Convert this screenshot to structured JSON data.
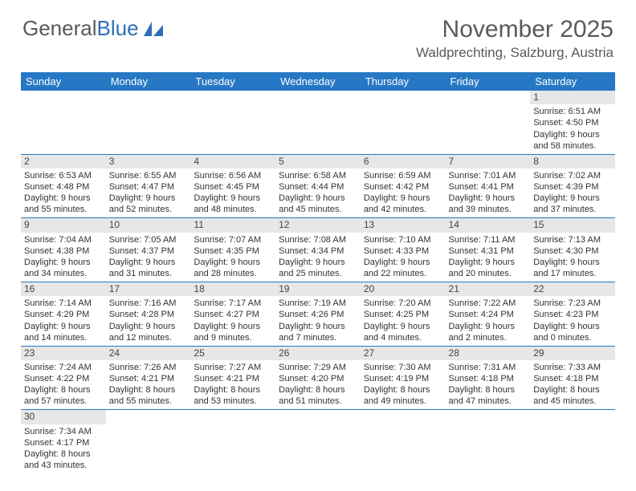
{
  "logo": {
    "text1": "General",
    "text2": "Blue"
  },
  "title": {
    "month": "November 2025",
    "location": "Waldprechting, Salzburg, Austria"
  },
  "colors": {
    "header_bg": "#2778c4",
    "header_text": "#ffffff",
    "daynum_bg": "#e7e7e7",
    "row_border": "#2778c4",
    "body_text": "#333333",
    "title_text": "#5a5a5a",
    "logo_blue": "#2e6fb5"
  },
  "weekdays": [
    "Sunday",
    "Monday",
    "Tuesday",
    "Wednesday",
    "Thursday",
    "Friday",
    "Saturday"
  ],
  "days": {
    "1": {
      "sunrise": "Sunrise: 6:51 AM",
      "sunset": "Sunset: 4:50 PM",
      "daylight": "Daylight: 9 hours and 58 minutes."
    },
    "2": {
      "sunrise": "Sunrise: 6:53 AM",
      "sunset": "Sunset: 4:48 PM",
      "daylight": "Daylight: 9 hours and 55 minutes."
    },
    "3": {
      "sunrise": "Sunrise: 6:55 AM",
      "sunset": "Sunset: 4:47 PM",
      "daylight": "Daylight: 9 hours and 52 minutes."
    },
    "4": {
      "sunrise": "Sunrise: 6:56 AM",
      "sunset": "Sunset: 4:45 PM",
      "daylight": "Daylight: 9 hours and 48 minutes."
    },
    "5": {
      "sunrise": "Sunrise: 6:58 AM",
      "sunset": "Sunset: 4:44 PM",
      "daylight": "Daylight: 9 hours and 45 minutes."
    },
    "6": {
      "sunrise": "Sunrise: 6:59 AM",
      "sunset": "Sunset: 4:42 PM",
      "daylight": "Daylight: 9 hours and 42 minutes."
    },
    "7": {
      "sunrise": "Sunrise: 7:01 AM",
      "sunset": "Sunset: 4:41 PM",
      "daylight": "Daylight: 9 hours and 39 minutes."
    },
    "8": {
      "sunrise": "Sunrise: 7:02 AM",
      "sunset": "Sunset: 4:39 PM",
      "daylight": "Daylight: 9 hours and 37 minutes."
    },
    "9": {
      "sunrise": "Sunrise: 7:04 AM",
      "sunset": "Sunset: 4:38 PM",
      "daylight": "Daylight: 9 hours and 34 minutes."
    },
    "10": {
      "sunrise": "Sunrise: 7:05 AM",
      "sunset": "Sunset: 4:37 PM",
      "daylight": "Daylight: 9 hours and 31 minutes."
    },
    "11": {
      "sunrise": "Sunrise: 7:07 AM",
      "sunset": "Sunset: 4:35 PM",
      "daylight": "Daylight: 9 hours and 28 minutes."
    },
    "12": {
      "sunrise": "Sunrise: 7:08 AM",
      "sunset": "Sunset: 4:34 PM",
      "daylight": "Daylight: 9 hours and 25 minutes."
    },
    "13": {
      "sunrise": "Sunrise: 7:10 AM",
      "sunset": "Sunset: 4:33 PM",
      "daylight": "Daylight: 9 hours and 22 minutes."
    },
    "14": {
      "sunrise": "Sunrise: 7:11 AM",
      "sunset": "Sunset: 4:31 PM",
      "daylight": "Daylight: 9 hours and 20 minutes."
    },
    "15": {
      "sunrise": "Sunrise: 7:13 AM",
      "sunset": "Sunset: 4:30 PM",
      "daylight": "Daylight: 9 hours and 17 minutes."
    },
    "16": {
      "sunrise": "Sunrise: 7:14 AM",
      "sunset": "Sunset: 4:29 PM",
      "daylight": "Daylight: 9 hours and 14 minutes."
    },
    "17": {
      "sunrise": "Sunrise: 7:16 AM",
      "sunset": "Sunset: 4:28 PM",
      "daylight": "Daylight: 9 hours and 12 minutes."
    },
    "18": {
      "sunrise": "Sunrise: 7:17 AM",
      "sunset": "Sunset: 4:27 PM",
      "daylight": "Daylight: 9 hours and 9 minutes."
    },
    "19": {
      "sunrise": "Sunrise: 7:19 AM",
      "sunset": "Sunset: 4:26 PM",
      "daylight": "Daylight: 9 hours and 7 minutes."
    },
    "20": {
      "sunrise": "Sunrise: 7:20 AM",
      "sunset": "Sunset: 4:25 PM",
      "daylight": "Daylight: 9 hours and 4 minutes."
    },
    "21": {
      "sunrise": "Sunrise: 7:22 AM",
      "sunset": "Sunset: 4:24 PM",
      "daylight": "Daylight: 9 hours and 2 minutes."
    },
    "22": {
      "sunrise": "Sunrise: 7:23 AM",
      "sunset": "Sunset: 4:23 PM",
      "daylight": "Daylight: 9 hours and 0 minutes."
    },
    "23": {
      "sunrise": "Sunrise: 7:24 AM",
      "sunset": "Sunset: 4:22 PM",
      "daylight": "Daylight: 8 hours and 57 minutes."
    },
    "24": {
      "sunrise": "Sunrise: 7:26 AM",
      "sunset": "Sunset: 4:21 PM",
      "daylight": "Daylight: 8 hours and 55 minutes."
    },
    "25": {
      "sunrise": "Sunrise: 7:27 AM",
      "sunset": "Sunset: 4:21 PM",
      "daylight": "Daylight: 8 hours and 53 minutes."
    },
    "26": {
      "sunrise": "Sunrise: 7:29 AM",
      "sunset": "Sunset: 4:20 PM",
      "daylight": "Daylight: 8 hours and 51 minutes."
    },
    "27": {
      "sunrise": "Sunrise: 7:30 AM",
      "sunset": "Sunset: 4:19 PM",
      "daylight": "Daylight: 8 hours and 49 minutes."
    },
    "28": {
      "sunrise": "Sunrise: 7:31 AM",
      "sunset": "Sunset: 4:18 PM",
      "daylight": "Daylight: 8 hours and 47 minutes."
    },
    "29": {
      "sunrise": "Sunrise: 7:33 AM",
      "sunset": "Sunset: 4:18 PM",
      "daylight": "Daylight: 8 hours and 45 minutes."
    },
    "30": {
      "sunrise": "Sunrise: 7:34 AM",
      "sunset": "Sunset: 4:17 PM",
      "daylight": "Daylight: 8 hours and 43 minutes."
    }
  },
  "grid": [
    [
      null,
      null,
      null,
      null,
      null,
      null,
      "1"
    ],
    [
      "2",
      "3",
      "4",
      "5",
      "6",
      "7",
      "8"
    ],
    [
      "9",
      "10",
      "11",
      "12",
      "13",
      "14",
      "15"
    ],
    [
      "16",
      "17",
      "18",
      "19",
      "20",
      "21",
      "22"
    ],
    [
      "23",
      "24",
      "25",
      "26",
      "27",
      "28",
      "29"
    ],
    [
      "30",
      null,
      null,
      null,
      null,
      null,
      null
    ]
  ]
}
